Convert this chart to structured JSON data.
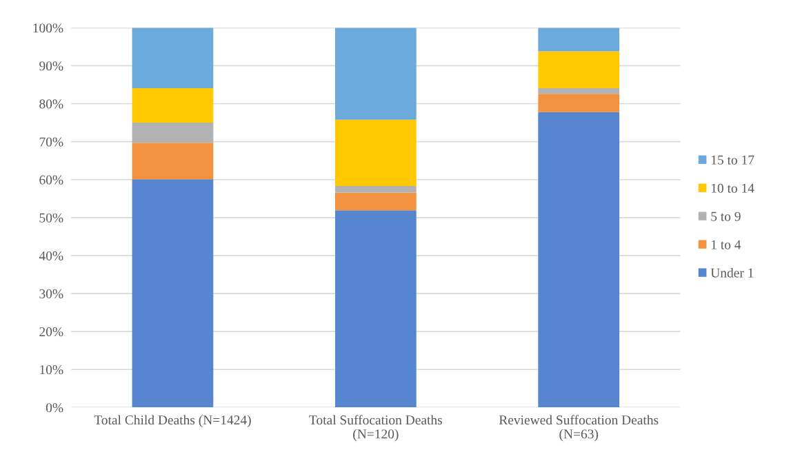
{
  "chart_data": {
    "type": "bar",
    "stacked": true,
    "categories": [
      "Total Child Deaths (N=1424)",
      "Total Suffocation Deaths\n(N=120)",
      "Reviewed Suffocation Deaths\n(N=63)"
    ],
    "series": [
      {
        "name": "Under 1",
        "color": "#5586cf",
        "values": [
          60.1,
          51.9,
          77.8
        ]
      },
      {
        "name": "1 to 4",
        "color": "#f2913f",
        "values": [
          9.6,
          4.7,
          4.8
        ]
      },
      {
        "name": "5 to 9",
        "color": "#b2b2b2",
        "values": [
          5.3,
          1.7,
          1.5
        ]
      },
      {
        "name": "10 to 14",
        "color": "#ffc800",
        "values": [
          9.1,
          17.5,
          9.7
        ]
      },
      {
        "name": "15 to 17",
        "color": "#6caadb",
        "values": [
          15.9,
          24.2,
          6.2
        ]
      }
    ],
    "ylim": [
      0,
      100
    ],
    "yticks": [
      {
        "value": 0,
        "label": "0%"
      },
      {
        "value": 10,
        "label": "10%"
      },
      {
        "value": 20,
        "label": "20%"
      },
      {
        "value": 30,
        "label": "30%"
      },
      {
        "value": 40,
        "label": "40%"
      },
      {
        "value": 50,
        "label": "50%"
      },
      {
        "value": 60,
        "label": "60%"
      },
      {
        "value": 70,
        "label": "70%"
      },
      {
        "value": 80,
        "label": "80%"
      },
      {
        "value": 90,
        "label": "90%"
      },
      {
        "value": 100,
        "label": "100%"
      }
    ],
    "grid": "y",
    "legend": "right"
  }
}
